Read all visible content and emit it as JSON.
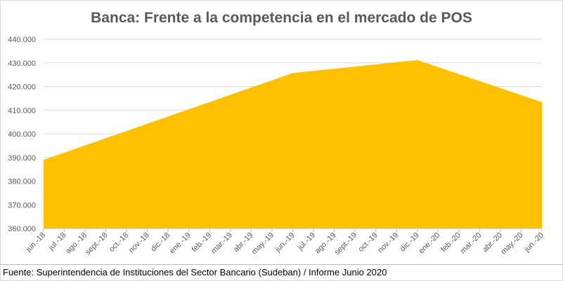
{
  "title": "Banca: Frente a la competencia en el mercado de POS",
  "source": "Fuente: Superintendencia de Instituciones del Sector Bancario (Sudeban) / Informe Junio 2020",
  "chart_data": {
    "type": "area",
    "title": "Banca: Frente a la competencia en el mercado de POS",
    "categories": [
      "jun.-18",
      "jul.-18",
      "ago.-18",
      "sept.-18",
      "oct.-18",
      "nov.-18",
      "dic.-18",
      "ene.-19",
      "feb.-19",
      "mar.-19",
      "abr.-19",
      "may.-19",
      "jun.-19",
      "jul.-19",
      "ago.-19",
      "sept.-19",
      "oct.-19",
      "nov.-19",
      "dic.-19",
      "ene.-20",
      "feb.-20",
      "mar.-20",
      "abr.-20",
      "may.-20",
      "jun.-20"
    ],
    "values": [
      389000,
      392060,
      395120,
      398170,
      401230,
      404290,
      407350,
      410410,
      413460,
      416520,
      419580,
      422640,
      425700,
      426620,
      427530,
      428450,
      429360,
      430280,
      431200,
      428230,
      425270,
      422300,
      419330,
      416370,
      413400
    ],
    "ylim": [
      360000,
      440000
    ],
    "yticks": [
      "360.000",
      "370.000",
      "380.000",
      "390.000",
      "400.000",
      "410.000",
      "420.000",
      "430.000",
      "440.000"
    ],
    "grid": true,
    "color": "#FFC000",
    "xlabel": "",
    "ylabel": ""
  }
}
